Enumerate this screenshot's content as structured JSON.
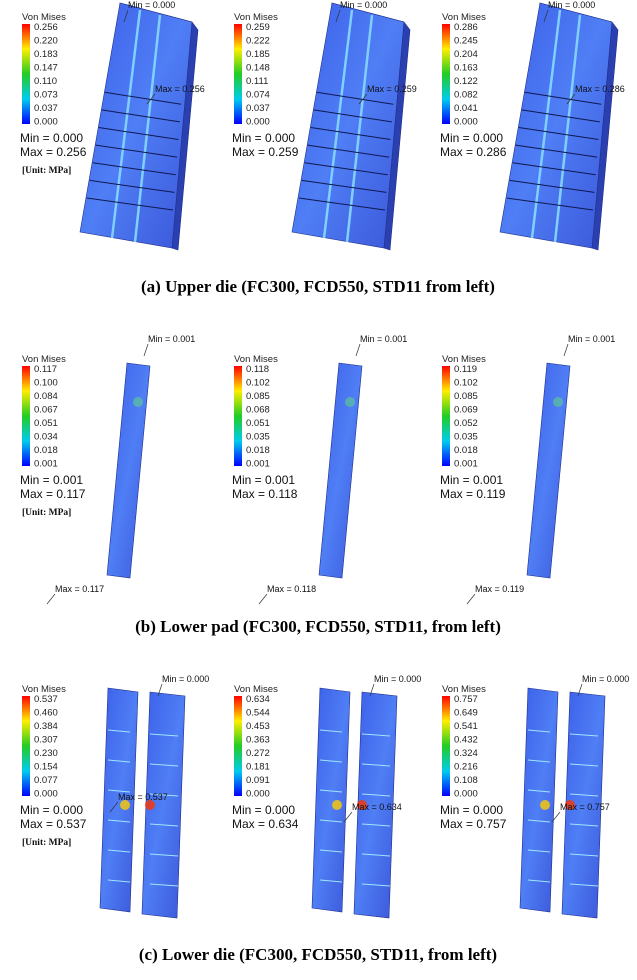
{
  "panels": [
    {
      "caption": "(a) Upper die (FC300, FCD550, STD11 from left)",
      "plots": [
        {
          "legend_title": "Von Mises",
          "legend_values": [
            "0.256",
            "0.220",
            "0.183",
            "0.147",
            "0.110",
            "0.073",
            "0.037",
            "0.000"
          ],
          "min_text": "Min = 0.000",
          "max_text": "Max = 0.256",
          "unit": "[Unit: MPa]",
          "min_marker": "Min = 0.000",
          "max_marker": "Max = 0.256"
        },
        {
          "legend_title": "Von Mises",
          "legend_values": [
            "0.259",
            "0.222",
            "0.185",
            "0.148",
            "0.111",
            "0.074",
            "0.037",
            "0.000"
          ],
          "min_text": "Min = 0.000",
          "max_text": "Max = 0.259",
          "min_marker": "Min = 0.000",
          "max_marker": "Max = 0.259"
        },
        {
          "legend_title": "Von Mises",
          "legend_values": [
            "0.286",
            "0.245",
            "0.204",
            "0.163",
            "0.122",
            "0.082",
            "0.041",
            "0.000"
          ],
          "min_text": "Min = 0.000",
          "max_text": "Max = 0.286",
          "min_marker": "Min = 0.000",
          "max_marker": "Max = 0.286"
        }
      ]
    },
    {
      "caption": "(b) Lower pad (FC300, FCD550, STD11, from left)",
      "plots": [
        {
          "legend_title": "Von Mises",
          "legend_values": [
            "0.117",
            "0.100",
            "0.084",
            "0.067",
            "0.051",
            "0.034",
            "0.018",
            "0.001"
          ],
          "min_text": "Min = 0.001",
          "max_text": "Max = 0.117",
          "unit": "[Unit: MPa]",
          "min_marker": "Min = 0.001",
          "max_marker": "Max = 0.117"
        },
        {
          "legend_title": "Von Mises",
          "legend_values": [
            "0.118",
            "0.102",
            "0.085",
            "0.068",
            "0.051",
            "0.035",
            "0.018",
            "0.001"
          ],
          "min_text": "Min = 0.001",
          "max_text": "Max = 0.118",
          "min_marker": "Min = 0.001",
          "max_marker": "Max = 0.118"
        },
        {
          "legend_title": "Von Mises",
          "legend_values": [
            "0.119",
            "0.102",
            "0.085",
            "0.069",
            "0.052",
            "0.035",
            "0.018",
            "0.001"
          ],
          "min_text": "Min = 0.001",
          "max_text": "Max = 0.119",
          "min_marker": "Min = 0.001",
          "max_marker": "Max = 0.119"
        }
      ]
    },
    {
      "caption": "(c) Lower die (FC300, FCD550, STD11, from left)",
      "plots": [
        {
          "legend_title": "Von Mises",
          "legend_values": [
            "0.537",
            "0.460",
            "0.384",
            "0.307",
            "0.230",
            "0.154",
            "0.077",
            "0.000"
          ],
          "min_text": "Min = 0.000",
          "max_text": "Max = 0.537",
          "unit": "[Unit: MPa]",
          "min_marker": "Min = 0.000",
          "max_marker": "Max = 0.537"
        },
        {
          "legend_title": "Von Mises",
          "legend_values": [
            "0.634",
            "0.544",
            "0.453",
            "0.363",
            "0.272",
            "0.181",
            "0.091",
            "0.000"
          ],
          "min_text": "Min = 0.000",
          "max_text": "Max = 0.634",
          "min_marker": "Min = 0.000",
          "max_marker": "Max = 0.634"
        },
        {
          "legend_title": "Von Mises",
          "legend_values": [
            "0.757",
            "0.649",
            "0.541",
            "0.432",
            "0.324",
            "0.216",
            "0.108",
            "0.000"
          ],
          "min_text": "Min = 0.000",
          "max_text": "Max = 0.757",
          "min_marker": "Min = 0.000",
          "max_marker": "Max = 0.757"
        }
      ]
    }
  ]
}
